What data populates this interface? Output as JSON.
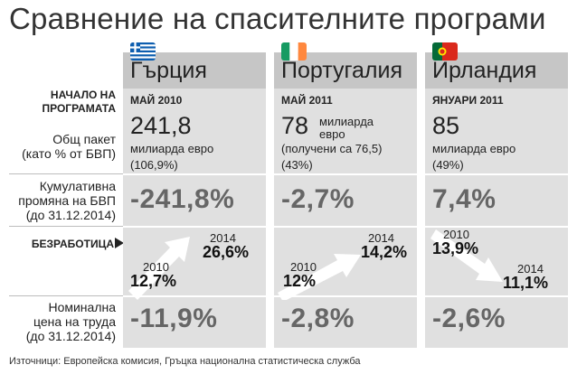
{
  "title": "Сравнение на спасителните програми",
  "rows": {
    "start": [
      "НАЧАЛО НА",
      "ПРОГРАМАТА"
    ],
    "package": [
      "Общ пакет",
      "(като % от БВП)"
    ],
    "gdp": [
      "Кумулативна",
      "промяна на БВП",
      "(до 31.12.2014)"
    ],
    "unemployment": "БЕЗРАБОТИЦА",
    "labour": [
      "Номинална",
      "цена на труда",
      "(до 31.12.2014)"
    ]
  },
  "countries": [
    {
      "name": "Гърция",
      "flag": "greece-flag",
      "start": "МАЙ 2010",
      "amount": "241,8",
      "amount_unit": [
        "милиарда евро"
      ],
      "amount_pct": "(106,9%)",
      "gdp": "-241,8%",
      "unemp_from_year": "2010",
      "unemp_from": "12,7%",
      "unemp_to_year": "2014",
      "unemp_to": "26,6%",
      "labour": "-11,9%"
    },
    {
      "name": "Португалия",
      "flag": "ireland-flag",
      "start": "МАЙ 2011",
      "amount": "78",
      "amount_unit": [
        "милиарда",
        "евро",
        "(получени са 76,5)"
      ],
      "amount_pct": "(43%)",
      "gdp": "-2,7%",
      "unemp_from_year": "2010",
      "unemp_from": "12%",
      "unemp_to_year": "2014",
      "unemp_to": "14,2%",
      "labour": "-2,8%"
    },
    {
      "name": "Ирландия",
      "flag": "portugal-flag",
      "start": "ЯНУАРИ 2011",
      "amount": "85",
      "amount_unit": [
        "милиарда евро"
      ],
      "amount_pct": "(49%)",
      "gdp": "7,4%",
      "unemp_from_year": "2010",
      "unemp_from": "13,9%",
      "unemp_to_year": "2014",
      "unemp_to": "11,1%",
      "labour": "-2,6%"
    }
  ],
  "colors": {
    "header": "#c6c6c6",
    "column": "#e0e0e0",
    "value_text": "#666666"
  },
  "source": "Източници: Европейска комисия, Гръцка национална статистическа служба"
}
